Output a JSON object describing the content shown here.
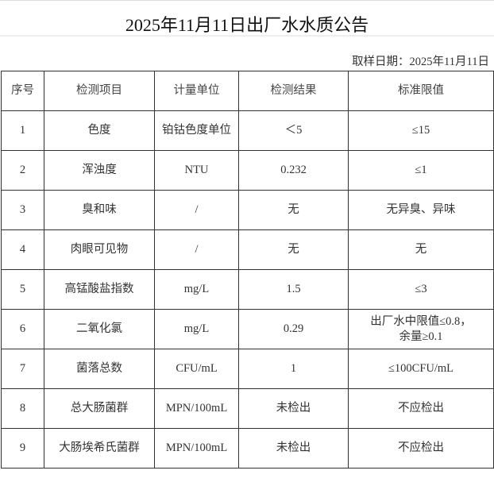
{
  "title": "2025年11月11日出厂水水质公告",
  "sample_date": "取样日期：2025年11月11日",
  "table": {
    "headers": [
      "序号",
      "检测项目",
      "计量单位",
      "检测结果",
      "标准限值"
    ],
    "rows": [
      {
        "no": "1",
        "item": "色度",
        "unit": "铂钴色度单位",
        "result": "＜5",
        "limit": "≤15"
      },
      {
        "no": "2",
        "item": "浑浊度",
        "unit": "NTU",
        "result": "0.232",
        "limit": "≤1"
      },
      {
        "no": "3",
        "item": "臭和味",
        "unit": "/",
        "result": "无",
        "limit": "无异臭、异味"
      },
      {
        "no": "4",
        "item": "肉眼可见物",
        "unit": "/",
        "result": "无",
        "limit": "无"
      },
      {
        "no": "5",
        "item": "高锰酸盐指数",
        "unit": "mg/L",
        "result": "1.5",
        "limit": "≤3"
      },
      {
        "no": "6",
        "item": "二氧化氯",
        "unit": "mg/L",
        "result": "0.29",
        "limit": "出厂水中限值≤0.8，",
        "limit2": "余量≥0.1"
      },
      {
        "no": "7",
        "item": "菌落总数",
        "unit": "CFU/mL",
        "result": "1",
        "limit": "≤100CFU/mL"
      },
      {
        "no": "8",
        "item": "总大肠菌群",
        "unit": "MPN/100mL",
        "result": "未检出",
        "limit": "不应检出"
      },
      {
        "no": "9",
        "item": "大肠埃希氏菌群",
        "unit": "MPN/100mL",
        "result": "未检出",
        "limit": "不应检出"
      }
    ]
  }
}
